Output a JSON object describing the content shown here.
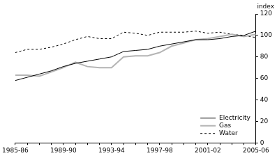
{
  "chart_data": {
    "type": "line",
    "y_label": "index",
    "categories": [
      "1985-86",
      null,
      null,
      null,
      "1989-90",
      null,
      null,
      null,
      "1993-94",
      null,
      null,
      null,
      "1997-98",
      null,
      null,
      null,
      "2001-02",
      null,
      null,
      null,
      "2005-06"
    ],
    "series": [
      {
        "name": "Electricity",
        "color": "#000000",
        "line_style": "solid",
        "values": [
          58,
          61,
          64,
          67,
          71,
          74,
          76,
          78,
          80,
          85,
          86,
          87,
          90,
          92,
          94,
          96,
          96,
          97,
          99,
          100,
          104
        ]
      },
      {
        "name": "Gas",
        "color": "#b4b4b4",
        "line_style": "solid",
        "values": [
          63,
          63,
          62,
          66,
          70,
          75,
          71,
          70,
          70,
          80,
          81,
          81,
          84,
          90,
          93,
          96,
          97,
          99,
          101,
          99,
          101
        ]
      },
      {
        "name": "Water",
        "color": "#000000",
        "line_style": "dashed",
        "values": [
          84,
          87,
          87,
          89,
          92,
          96,
          99,
          97,
          97,
          103,
          102,
          100,
          103,
          103,
          103,
          104,
          102,
          103,
          101,
          100,
          98
        ]
      }
    ],
    "ylim": [
      0,
      120
    ],
    "yticks": [
      0,
      20,
      40,
      60,
      80,
      100,
      120
    ],
    "grid": false,
    "legend": "lower right"
  }
}
